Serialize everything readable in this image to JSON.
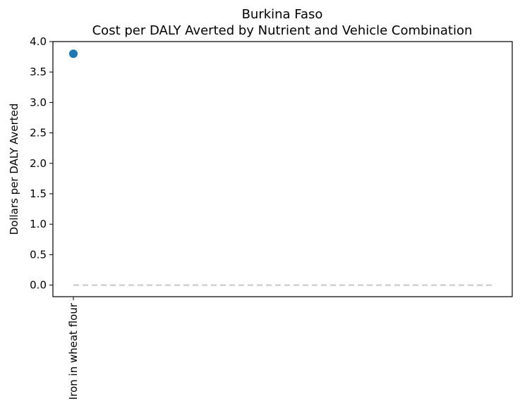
{
  "chart_data": {
    "type": "scatter",
    "title": "Burkina Faso",
    "subtitle": "Cost per DALY Averted by Nutrient and Vehicle Combination",
    "xlabel": "",
    "ylabel": "Dollars per DALY Averted",
    "categories": [
      "Iron in wheat flour"
    ],
    "values": [
      3.8
    ],
    "ylim": [
      -0.19,
      4.0
    ],
    "yticks": [
      0.0,
      0.5,
      1.0,
      1.5,
      2.0,
      2.5,
      3.0,
      3.5,
      4.0
    ],
    "ytick_labels": [
      "0.0",
      "0.5",
      "1.0",
      "1.5",
      "2.0",
      "2.5",
      "3.0",
      "3.5",
      "4.0"
    ],
    "reference_line": {
      "y": 0,
      "style": "dashed"
    },
    "grid": false,
    "colors": {
      "point": "#1f77b4",
      "reference_line": "#c8c8c8",
      "axes": "#000000"
    }
  }
}
